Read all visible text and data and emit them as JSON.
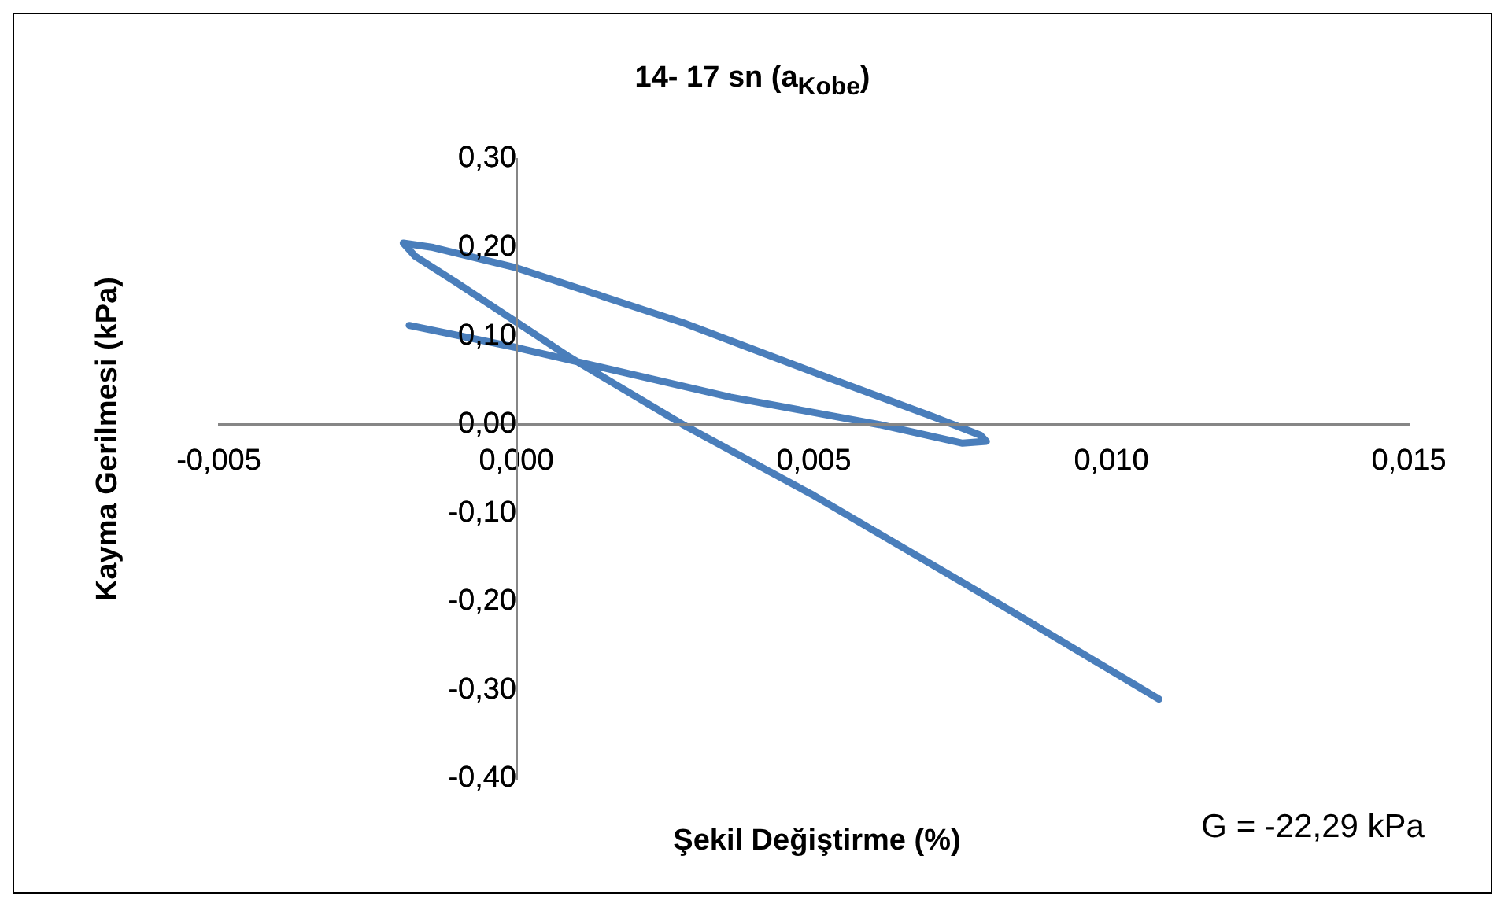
{
  "chart_data": {
    "type": "line",
    "title": "14- 17 sn (a$_{Kobe}$)",
    "xlabel": "Şekil Değiştirme (%)",
    "ylabel": "Kayma Gerilmesi (kPa)",
    "xlim": [
      -0.005,
      0.015
    ],
    "xticks": [
      {
        "value": -0.005,
        "label": "-0,005"
      },
      {
        "value": 0,
        "label": "0,000"
      },
      {
        "value": 0.005,
        "label": "0,005"
      },
      {
        "value": 0.01,
        "label": "0,010"
      },
      {
        "value": 0.015,
        "label": "0,015"
      }
    ],
    "ylim": [
      -0.4,
      0.3
    ],
    "yticks": [
      {
        "value": -0.4,
        "label": "-0,40"
      },
      {
        "value": -0.3,
        "label": "-0,30"
      },
      {
        "value": -0.2,
        "label": "-0,20"
      },
      {
        "value": -0.1,
        "label": "-0,10"
      },
      {
        "value": 0,
        "label": "0,00"
      },
      {
        "value": 0.1,
        "label": "0,10"
      },
      {
        "value": 0.2,
        "label": "0,20"
      },
      {
        "value": 0.3,
        "label": "0,30"
      }
    ],
    "grid": false,
    "legend": false,
    "marker": "none",
    "line_style": "solid",
    "series": [
      {
        "color": "#4a7ebb",
        "x": [
          0.0108,
          0.0078,
          0.005,
          0.0028,
          0.0009,
          -0.001,
          -0.0017,
          -0.0019,
          -0.0014,
          0.0,
          0.0028,
          0.0052,
          0.007,
          0.0078,
          0.0079,
          0.0075,
          0.0061,
          0.0036,
          0.0009,
          0.0,
          -0.0018
        ],
        "values": [
          -0.31,
          -0.19,
          -0.08,
          0.0,
          0.076,
          0.16,
          0.19,
          0.205,
          0.2,
          0.177,
          0.115,
          0.054,
          0.009,
          -0.012,
          -0.019,
          -0.021,
          0.0,
          0.031,
          0.073,
          0.087,
          0.112
        ]
      }
    ],
    "annotations": [
      "G = -22,29 kPa"
    ]
  }
}
